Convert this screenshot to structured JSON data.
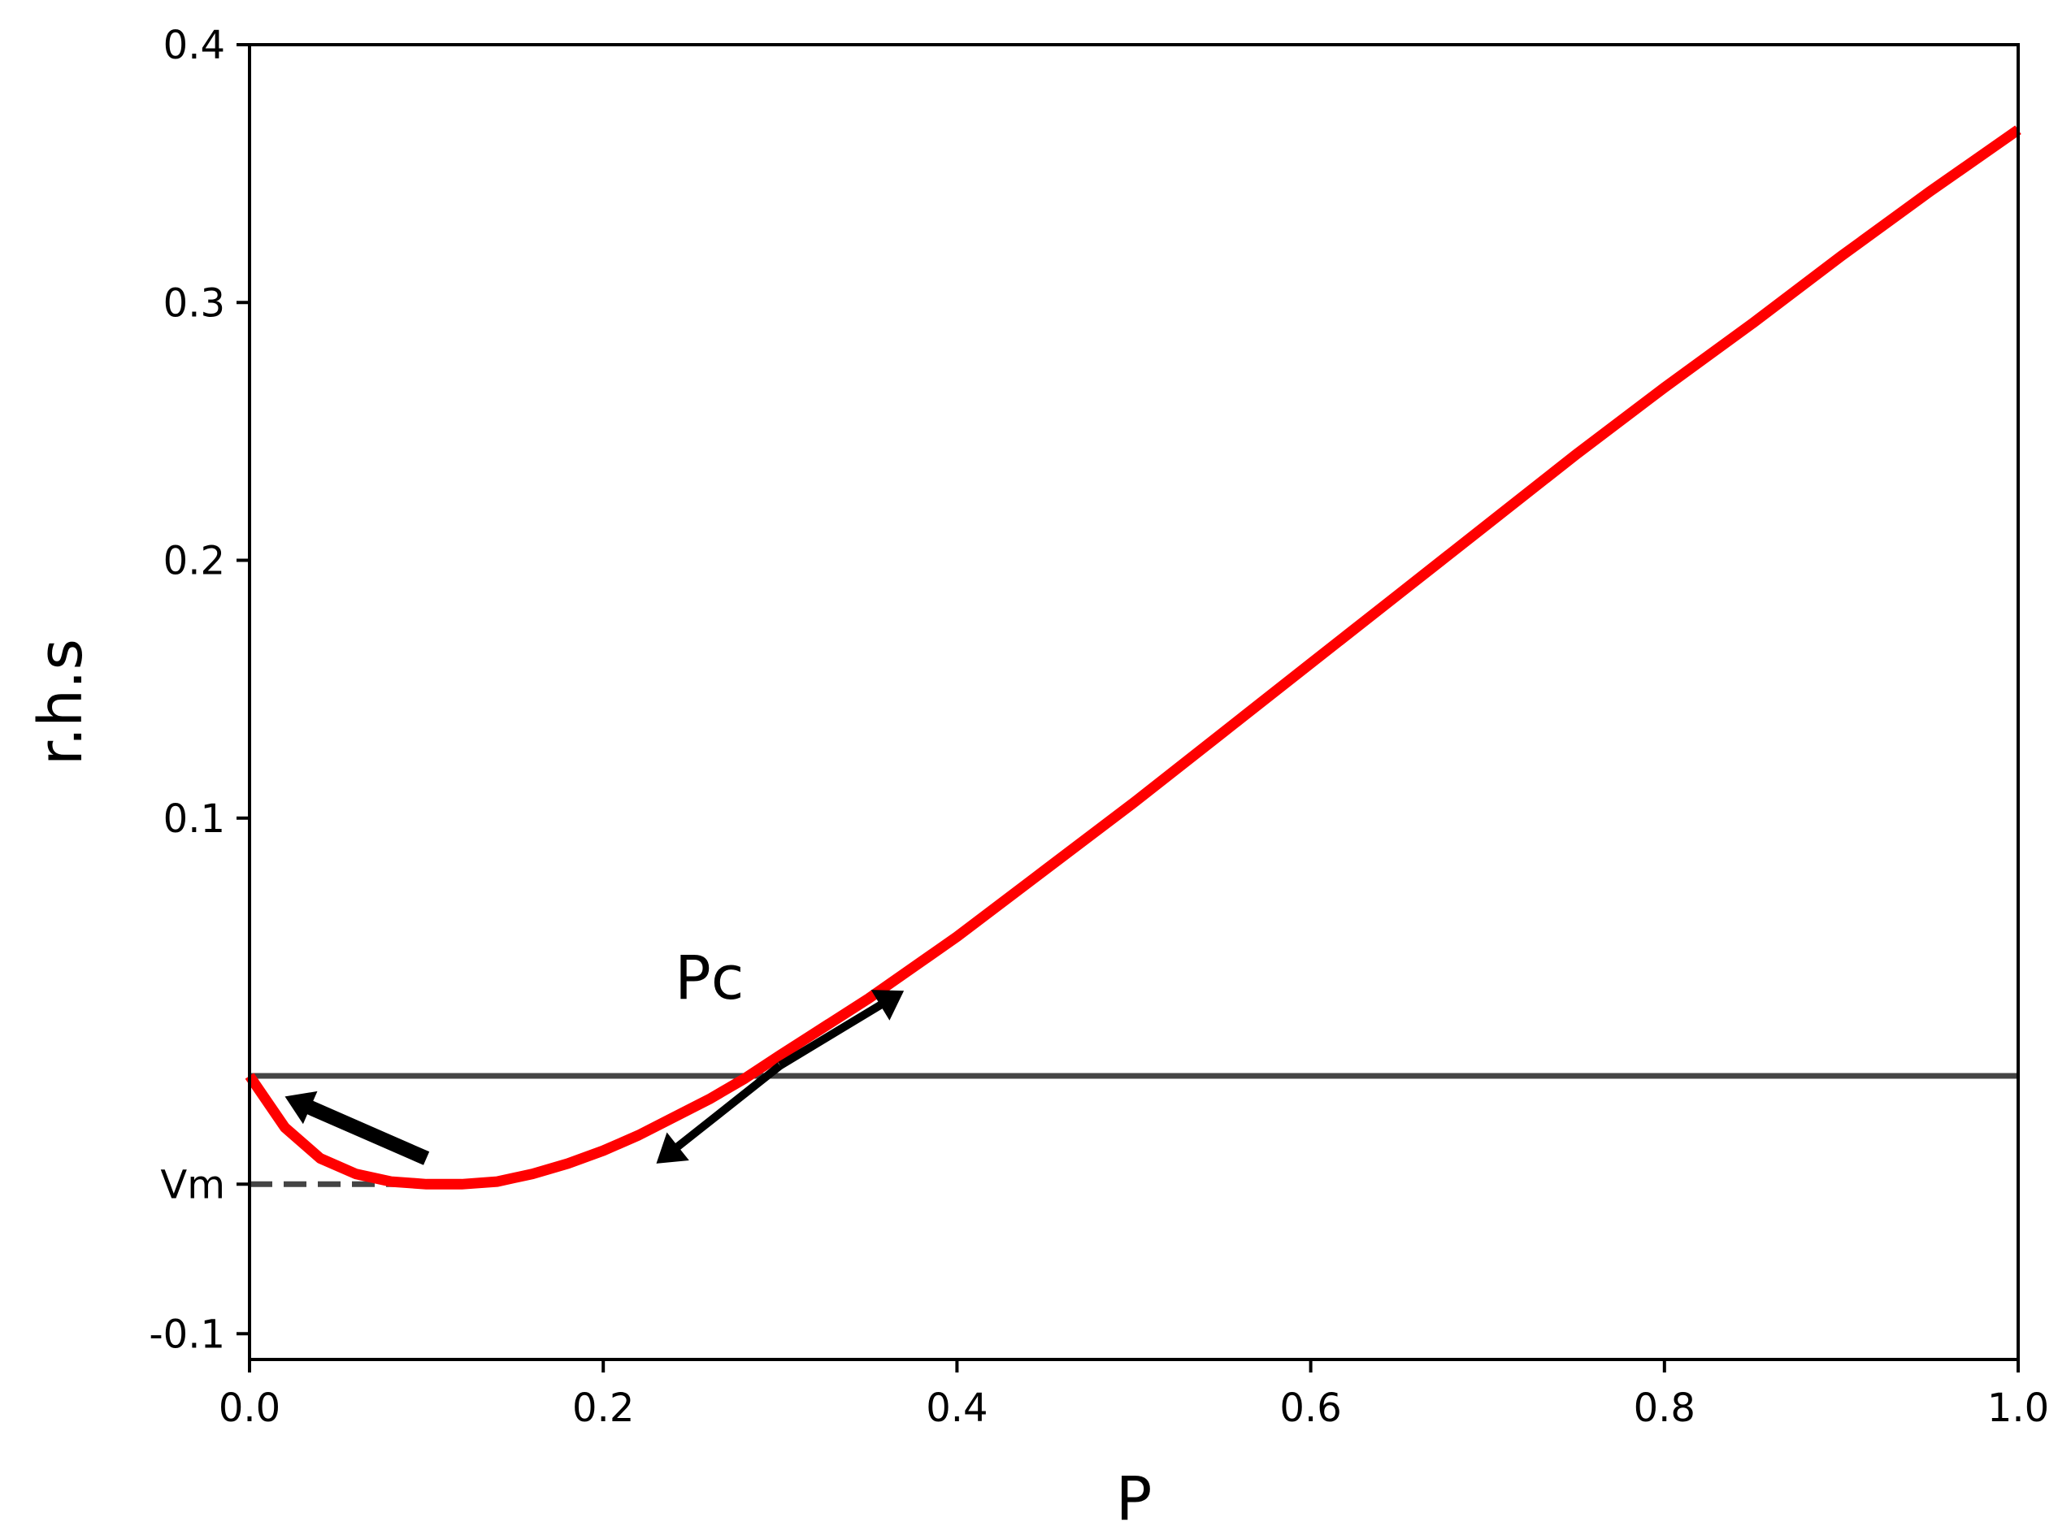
{
  "chart_data": {
    "type": "line",
    "xlabel": "P",
    "ylabel": "r.h.s",
    "xlim": [
      0.0,
      1.0
    ],
    "ylim": [
      -0.11,
      0.4
    ],
    "xticks": [
      "0.0",
      "0.2",
      "0.4",
      "0.6",
      "0.8",
      "1.0"
    ],
    "xtick_values": [
      0.0,
      0.2,
      0.4,
      0.6,
      0.8,
      1.0
    ],
    "yticks": [
      "-0.1",
      "Vm",
      "0.1",
      "0.2",
      "0.3",
      "0.4"
    ],
    "ytick_values": [
      -0.1,
      -0.042,
      0.1,
      0.2,
      0.3,
      0.4
    ],
    "grid": false,
    "series": [
      {
        "color": "#ff0000",
        "x": [
          0.0,
          0.02,
          0.04,
          0.06,
          0.08,
          0.1,
          0.12,
          0.14,
          0.16,
          0.18,
          0.2,
          0.22,
          0.24,
          0.26,
          0.28,
          0.3,
          0.35,
          0.4,
          0.45,
          0.5,
          0.55,
          0.6,
          0.65,
          0.7,
          0.75,
          0.8,
          0.85,
          0.9,
          0.95,
          1.0
        ],
        "y": [
          0.0,
          -0.02,
          -0.032,
          -0.038,
          -0.041,
          -0.042,
          -0.042,
          -0.041,
          -0.038,
          -0.034,
          -0.029,
          -0.023,
          -0.016,
          -0.009,
          -0.001,
          0.008,
          0.03,
          0.054,
          0.08,
          0.106,
          0.133,
          0.16,
          0.187,
          0.214,
          0.241,
          0.267,
          0.292,
          0.318,
          0.343,
          0.367
        ]
      }
    ],
    "reference_lines": [
      {
        "kind": "horizontal",
        "y": 0.0,
        "style": "solid",
        "color": "#444444"
      },
      {
        "kind": "horizontal",
        "y": -0.042,
        "x_end": 0.12,
        "style": "dashed",
        "color": "#444444"
      }
    ],
    "annotations": [
      {
        "text": "Pc",
        "x": 0.26,
        "y": 0.03
      }
    ],
    "arrows": [
      {
        "from": [
          0.1,
          -0.032
        ],
        "to": [
          0.02,
          -0.008
        ]
      },
      {
        "from": [
          0.3,
          0.004
        ],
        "to": [
          0.37,
          0.033
        ]
      },
      {
        "from": [
          0.3,
          0.004
        ],
        "to": [
          0.23,
          -0.034
        ]
      }
    ]
  }
}
